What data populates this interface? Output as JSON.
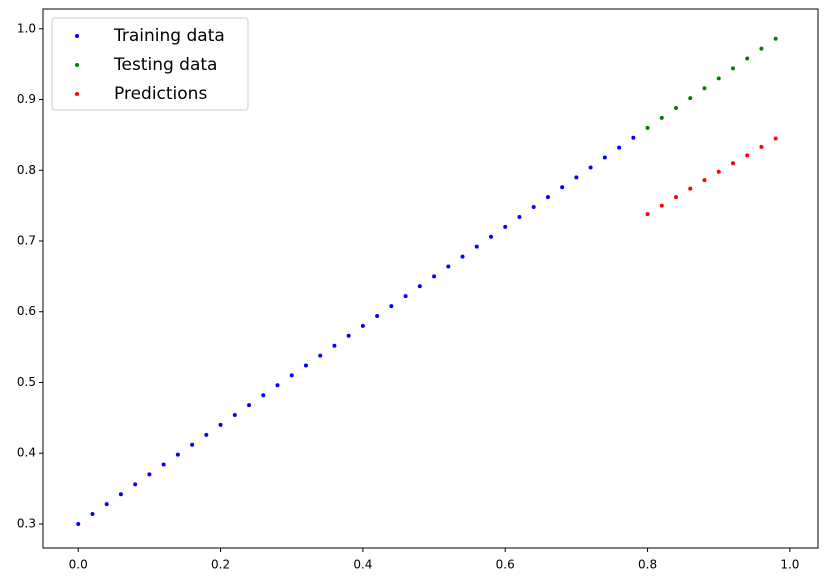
{
  "chart_data": {
    "type": "scatter",
    "xlim": [
      -0.0495,
      1.0395
    ],
    "ylim": [
      0.266,
      1.028
    ],
    "xticks": [
      {
        "value": 0,
        "label": "0.0"
      },
      0.2,
      0.4,
      0.6,
      0.8,
      {
        "value": 1,
        "label": "1.0"
      }
    ],
    "yticks": [
      0.3,
      0.4,
      0.5,
      0.6,
      0.7,
      0.8,
      0.9,
      {
        "value": 1,
        "label": "1.0"
      }
    ],
    "legend": "upper left",
    "series": [
      {
        "name": "Training data",
        "color": "#0000ff",
        "x": [
          0,
          0.02,
          0.04,
          0.06,
          0.08,
          0.1,
          0.12,
          0.14,
          0.16,
          0.18,
          0.2,
          0.22,
          0.24,
          0.26,
          0.28,
          0.3,
          0.32,
          0.34,
          0.36,
          0.38,
          0.4,
          0.42,
          0.44,
          0.46,
          0.48,
          0.5,
          0.52,
          0.54,
          0.56,
          0.58,
          0.6,
          0.62,
          0.64,
          0.66,
          0.68,
          0.7,
          0.72,
          0.74,
          0.76,
          0.78
        ],
        "values": [
          0.3,
          0.314,
          0.328,
          0.342,
          0.356,
          0.37,
          0.384,
          0.398,
          0.412,
          0.426,
          0.44,
          0.454,
          0.468,
          0.482,
          0.496,
          0.51,
          0.524,
          0.538,
          0.552,
          0.566,
          0.58,
          0.594,
          0.608,
          0.622,
          0.636,
          0.65,
          0.664,
          0.678,
          0.692,
          0.706,
          0.72,
          0.734,
          0.748,
          0.762,
          0.776,
          0.79,
          0.804,
          0.818,
          0.832,
          0.846
        ]
      },
      {
        "name": "Testing data",
        "color": "#008000",
        "x": [
          0.8,
          0.82,
          0.84,
          0.86,
          0.88,
          0.9,
          0.92,
          0.94,
          0.96,
          0.98
        ],
        "values": [
          0.86,
          0.874,
          0.888,
          0.902,
          0.916,
          0.93,
          0.944,
          0.958,
          0.972,
          0.986
        ]
      },
      {
        "name": "Predictions",
        "color": "#ff0000",
        "x": [
          0.8,
          0.82,
          0.84,
          0.86,
          0.88,
          0.9,
          0.92,
          0.94,
          0.96,
          0.98
        ],
        "values": [
          0.738,
          0.75,
          0.762,
          0.774,
          0.786,
          0.798,
          0.81,
          0.821,
          0.833,
          0.845
        ]
      }
    ]
  }
}
